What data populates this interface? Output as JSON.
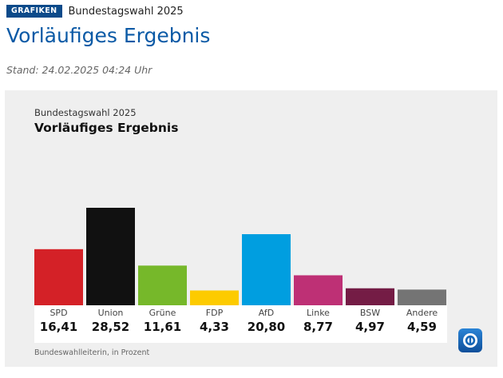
{
  "header": {
    "badge": "GRAFIKEN",
    "topic": "Bundestagswahl 2025",
    "title": "Vorläufiges Ergebnis",
    "stand": "Stand: 24.02.2025 04:24 Uhr"
  },
  "panel": {
    "subtitle": "Bundestagswahl 2025",
    "title": "Vorläufiges Ergebnis",
    "source": "Bundeswahlleiterin, in Prozent"
  },
  "logo": {
    "name": "ard-tagesschau-logo"
  },
  "chart_data": {
    "type": "bar",
    "title": "Vorläufiges Ergebnis",
    "subtitle": "Bundestagswahl 2025",
    "categories": [
      "SPD",
      "Union",
      "Grüne",
      "FDP",
      "AfD",
      "Linke",
      "BSW",
      "Andere"
    ],
    "values": [
      16.41,
      28.52,
      11.61,
      4.33,
      20.8,
      8.77,
      4.97,
      4.59
    ],
    "value_labels": [
      "16,41",
      "28,52",
      "11,61",
      "4,33",
      "20,80",
      "8,77",
      "4,97",
      "4,59"
    ],
    "colors": [
      "#d42127",
      "#111111",
      "#76b82a",
      "#fdcb00",
      "#009ee0",
      "#be3075",
      "#741c45",
      "#747474"
    ],
    "ylim": [
      0,
      28.52
    ],
    "grid": false,
    "legend": "none",
    "note": "Bundeswahlleiterin, in Prozent"
  }
}
